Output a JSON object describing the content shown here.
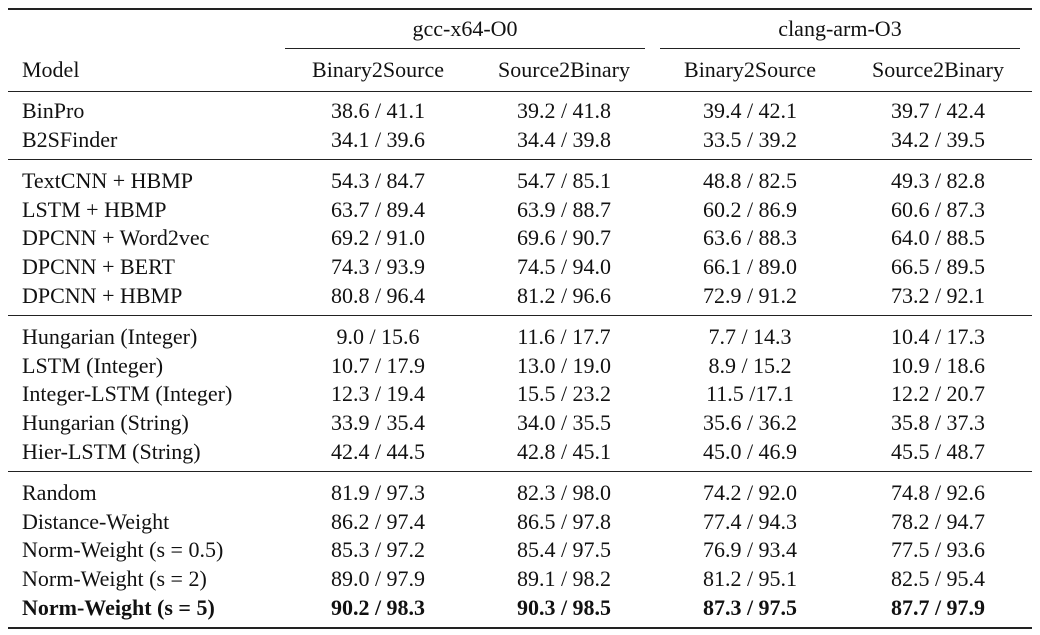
{
  "header": {
    "model_label": "Model",
    "groups": [
      "gcc-x64-O0",
      "clang-arm-O3"
    ],
    "columns": [
      "Binary2Source",
      "Source2Binary",
      "Binary2Source",
      "Source2Binary"
    ]
  },
  "table": {
    "sections": [
      {
        "rows": [
          [
            "BinPro",
            "38.6 / 41.1",
            "39.2 / 41.8",
            "39.4 / 42.1",
            "39.7 / 42.4"
          ],
          [
            "B2SFinder",
            "34.1 / 39.6",
            "34.4 / 39.8",
            "33.5 / 39.2",
            "34.2 / 39.5"
          ]
        ]
      },
      {
        "rows": [
          [
            "TextCNN + HBMP",
            "54.3 / 84.7",
            "54.7 / 85.1",
            "48.8 / 82.5",
            "49.3 / 82.8"
          ],
          [
            "LSTM + HBMP",
            "63.7 / 89.4",
            "63.9 / 88.7",
            "60.2 / 86.9",
            "60.6 / 87.3"
          ],
          [
            "DPCNN + Word2vec",
            "69.2 / 91.0",
            "69.6 / 90.7",
            "63.6 / 88.3",
            "64.0 / 88.5"
          ],
          [
            "DPCNN + BERT",
            "74.3 / 93.9",
            "74.5 / 94.0",
            "66.1 / 89.0",
            "66.5 / 89.5"
          ],
          [
            "DPCNN + HBMP",
            "80.8 / 96.4",
            "81.2 / 96.6",
            "72.9 / 91.2",
            "73.2 / 92.1"
          ]
        ]
      },
      {
        "rows": [
          [
            "Hungarian (Integer)",
            "9.0 / 15.6",
            "11.6 / 17.7",
            "7.7 / 14.3",
            "10.4 / 17.3"
          ],
          [
            "LSTM (Integer)",
            "10.7 / 17.9",
            "13.0 / 19.0",
            "8.9 / 15.2",
            "10.9 / 18.6"
          ],
          [
            "Integer-LSTM (Integer)",
            "12.3 / 19.4",
            "15.5 / 23.2",
            "11.5 /17.1",
            "12.2 / 20.7"
          ],
          [
            "Hungarian (String)",
            "33.9 / 35.4",
            "34.0 / 35.5",
            "35.6 / 36.2",
            "35.8 / 37.3"
          ],
          [
            "Hier-LSTM (String)",
            "42.4 / 44.5",
            "42.8 / 45.1",
            "45.0 / 46.9",
            "45.5 / 48.7"
          ]
        ]
      },
      {
        "rows": [
          [
            "Random",
            "81.9 / 97.3",
            "82.3 / 98.0",
            "74.2 / 92.0",
            "74.8 / 92.6"
          ],
          [
            "Distance-Weight",
            "86.2 / 97.4",
            "86.5 / 97.8",
            "77.4 / 94.3",
            "78.2 / 94.7"
          ],
          [
            "Norm-Weight (s = 0.5)",
            "85.3 / 97.2",
            "85.4 / 97.5",
            "76.9 / 93.4",
            "77.5 / 93.6"
          ],
          [
            "Norm-Weight (s = 2)",
            "89.0 / 97.9",
            "89.1 / 98.2",
            "81.2 / 95.1",
            "82.5 / 95.4"
          ],
          [
            "Norm-Weight (s = 5)",
            "90.2 / 98.3",
            "90.3 / 98.5",
            "87.3 / 97.5",
            "87.7 / 97.9"
          ]
        ]
      }
    ]
  }
}
